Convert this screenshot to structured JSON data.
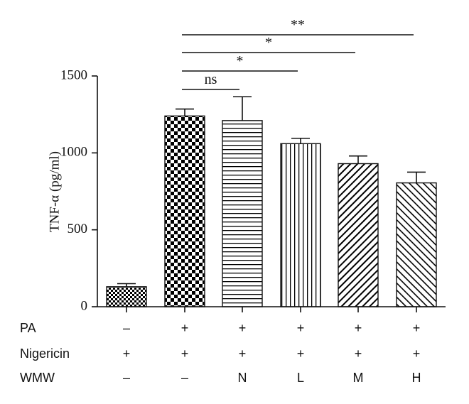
{
  "chart_data": {
    "type": "bar",
    "categories": [
      "1",
      "2",
      "3",
      "4",
      "5",
      "6"
    ],
    "values": [
      130,
      1240,
      1210,
      1060,
      930,
      805
    ],
    "errors": [
      20,
      45,
      155,
      35,
      50,
      70
    ],
    "patterns": [
      "fine-checker",
      "checker",
      "horizontal-lines",
      "vertical-lines",
      "diagonal-forward",
      "diagonal-back"
    ],
    "ylabel": "TNF-α (pg/ml)",
    "ylim": [
      0,
      1500
    ],
    "yticks": [
      0,
      500,
      1000,
      1500
    ],
    "grid": false,
    "conditions": [
      {
        "label": "PA",
        "values": [
          "–",
          "+",
          "+",
          "+",
          "+",
          "+"
        ]
      },
      {
        "label": "Nigericin",
        "values": [
          "+",
          "+",
          "+",
          "+",
          "+",
          "+"
        ]
      },
      {
        "label": "WMW",
        "values": [
          "–",
          "–",
          "N",
          "L",
          "M",
          "H"
        ]
      }
    ],
    "significance": [
      {
        "from": 1,
        "to": 2,
        "label": "ns"
      },
      {
        "from": 1,
        "to": 3,
        "label": "*"
      },
      {
        "from": 1,
        "to": 4,
        "label": "*"
      },
      {
        "from": 1,
        "to": 5,
        "label": "**"
      }
    ]
  }
}
